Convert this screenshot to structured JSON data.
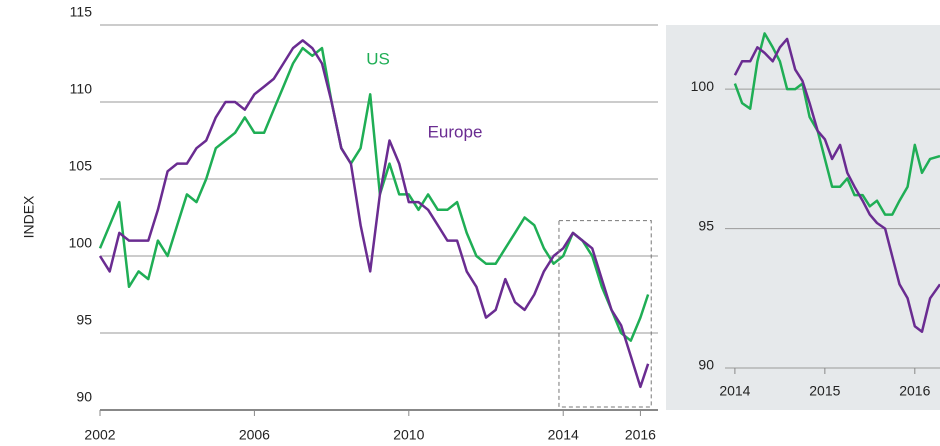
{
  "chart_data": [
    {
      "type": "line",
      "y_label": "INDEX",
      "x": [
        2002.0,
        2002.25,
        2002.5,
        2002.75,
        2003.0,
        2003.25,
        2003.5,
        2003.75,
        2004.0,
        2004.25,
        2004.5,
        2004.75,
        2005.0,
        2005.25,
        2005.5,
        2005.75,
        2006.0,
        2006.25,
        2006.5,
        2006.75,
        2007.0,
        2007.25,
        2007.5,
        2007.75,
        2008.0,
        2008.25,
        2008.5,
        2008.75,
        2009.0,
        2009.25,
        2009.5,
        2009.75,
        2010.0,
        2010.25,
        2010.5,
        2010.75,
        2011.0,
        2011.25,
        2011.5,
        2011.75,
        2012.0,
        2012.25,
        2012.5,
        2012.75,
        2013.0,
        2013.25,
        2013.5,
        2013.75,
        2014.0,
        2014.25,
        2014.5,
        2014.75,
        2015.0,
        2015.25,
        2015.5,
        2015.75,
        2016.0,
        2016.2
      ],
      "series": [
        {
          "name": "US",
          "color": "#1fae55",
          "values": [
            100.5,
            102,
            103.5,
            98,
            99,
            98.5,
            101,
            100,
            102,
            104,
            103.5,
            105,
            107,
            107.5,
            108,
            109,
            108,
            108,
            109.5,
            111,
            112.5,
            113.5,
            113,
            113.5,
            110,
            107,
            106,
            107,
            110.5,
            104,
            106,
            104,
            104,
            103,
            104,
            103,
            103,
            103.5,
            101.5,
            100,
            99.5,
            99.5,
            100.5,
            101.5,
            102.5,
            102,
            100.5,
            99.5,
            100,
            101.5,
            101,
            100,
            98,
            96.5,
            95,
            94.5,
            96,
            97.5
          ]
        },
        {
          "name": "Europe",
          "color": "#6a2c91",
          "values": [
            100,
            99,
            101.5,
            101,
            101,
            101,
            103,
            105.5,
            106,
            106,
            107,
            107.5,
            109,
            110,
            110,
            109.5,
            110.5,
            111,
            111.5,
            112.5,
            113.5,
            114,
            113.5,
            112.5,
            110,
            107,
            106,
            102,
            99,
            104,
            107.5,
            106,
            103.5,
            103.5,
            103,
            102,
            101,
            101,
            99,
            98,
            96,
            96.5,
            98.5,
            97,
            96.5,
            97.5,
            99,
            100,
            100.5,
            101.5,
            101,
            100.5,
            98.5,
            96.5,
            95.5,
            93.5,
            91.5,
            93
          ]
        }
      ],
      "xlim": [
        2002,
        2016.3
      ],
      "xticks": [
        2002,
        2006,
        2010,
        2014,
        2016
      ],
      "ylim": [
        90,
        115
      ],
      "yticks": [
        90,
        95,
        100,
        105,
        110,
        115
      ],
      "grid": true
    },
    {
      "type": "line",
      "x": [
        2014.0,
        2014.08,
        2014.17,
        2014.25,
        2014.33,
        2014.42,
        2014.5,
        2014.58,
        2014.67,
        2014.75,
        2014.83,
        2014.92,
        2015.0,
        2015.08,
        2015.17,
        2015.25,
        2015.33,
        2015.42,
        2015.5,
        2015.58,
        2015.67,
        2015.75,
        2015.83,
        2015.92,
        2016.0,
        2016.08,
        2016.17,
        2016.28
      ],
      "series": [
        {
          "name": "US",
          "color": "#1fae55",
          "values": [
            100.2,
            99.5,
            99.3,
            101,
            102,
            101.5,
            101,
            100,
            100,
            100.2,
            99,
            98.5,
            97.5,
            96.5,
            96.5,
            96.8,
            96.2,
            96.2,
            95.8,
            96,
            95.5,
            95.5,
            96,
            96.5,
            98,
            97,
            97.5,
            97.6
          ]
        },
        {
          "name": "Europe",
          "color": "#6a2c91",
          "values": [
            100.5,
            101,
            101,
            101.5,
            101.3,
            101,
            101.5,
            101.8,
            100.7,
            100.3,
            99.5,
            98.5,
            98.2,
            97.5,
            98,
            97,
            96.5,
            96,
            95.5,
            95.2,
            95,
            94,
            93,
            92.5,
            91.5,
            91.3,
            92.5,
            93
          ]
        }
      ],
      "xlim": [
        2013.89,
        2016.28
      ],
      "xticks": [
        2014,
        2015,
        2016
      ],
      "ylim": [
        90,
        102.3
      ],
      "yticks": [
        90,
        95,
        100
      ],
      "grid": true,
      "background": "#e6e9eb"
    }
  ]
}
